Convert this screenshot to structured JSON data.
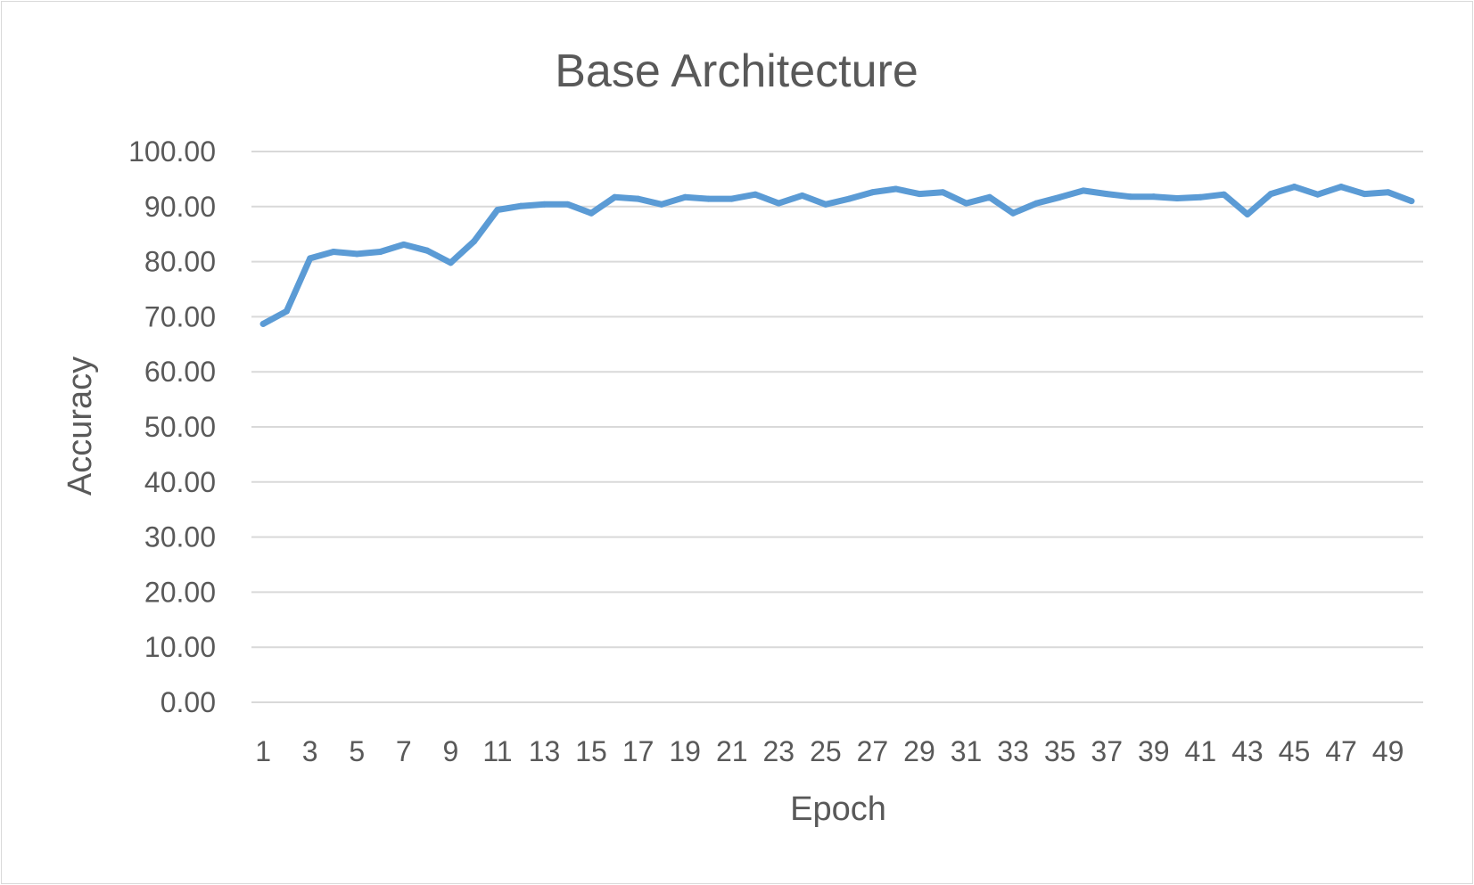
{
  "chart_data": {
    "type": "line",
    "title": "Base Architecture",
    "xlabel": "Epoch",
    "ylabel": "Accuracy",
    "ylim": [
      0,
      100
    ],
    "y_ticks": [
      "0.00",
      "10.00",
      "20.00",
      "30.00",
      "40.00",
      "50.00",
      "60.00",
      "70.00",
      "80.00",
      "90.00",
      "100.00"
    ],
    "x_tick_labels": [
      "1",
      "3",
      "5",
      "7",
      "9",
      "11",
      "13",
      "15",
      "17",
      "19",
      "21",
      "23",
      "25",
      "27",
      "29",
      "31",
      "33",
      "35",
      "37",
      "39",
      "41",
      "43",
      "45",
      "47",
      "49"
    ],
    "grid": true,
    "legend": "none",
    "series_color": "#5b9bd5",
    "x": [
      1,
      2,
      3,
      4,
      5,
      6,
      7,
      8,
      9,
      10,
      11,
      12,
      13,
      14,
      15,
      16,
      17,
      18,
      19,
      20,
      21,
      22,
      23,
      24,
      25,
      26,
      27,
      28,
      29,
      30,
      31,
      32,
      33,
      34,
      35,
      36,
      37,
      38,
      39,
      40,
      41,
      42,
      43,
      44,
      45,
      46,
      47,
      48,
      49,
      50
    ],
    "series": [
      {
        "values": [
          68.7,
          71.0,
          80.6,
          81.8,
          81.4,
          81.8,
          83.1,
          82.0,
          79.8,
          83.7,
          89.4,
          90.1,
          90.4,
          90.4,
          88.8,
          91.7,
          91.4,
          90.4,
          91.7,
          91.4,
          91.4,
          92.2,
          90.6,
          92.0,
          90.4,
          91.4,
          92.6,
          93.2,
          92.3,
          92.6,
          90.6,
          91.7,
          88.8,
          90.6,
          91.7,
          92.9,
          92.3,
          91.8,
          91.8,
          91.5,
          91.7,
          92.2,
          88.6,
          92.3,
          93.6,
          92.2,
          93.6,
          92.3,
          92.6,
          91.0
        ]
      }
    ]
  }
}
